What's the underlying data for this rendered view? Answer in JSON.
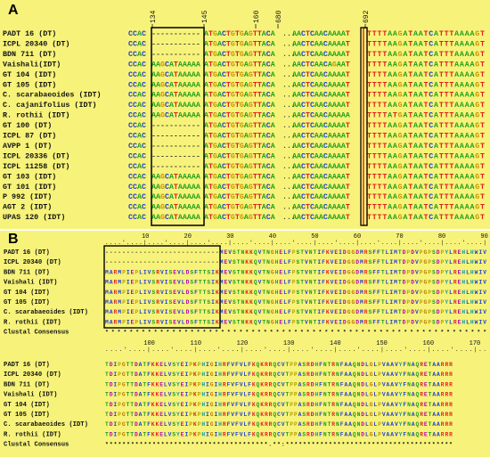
{
  "panel_a": {
    "label": "A",
    "positions": [
      "134",
      "145",
      "160",
      "680",
      "692"
    ],
    "names": [
      "PADT 16 (DT)",
      "ICPL 20340 (DT)",
      "BDN 711 (DT)",
      "Vaishali(IDT)",
      "GT 104 (IDT)",
      "GT 105 (IDT)",
      "C. scarabaeoides (IDT)",
      "C. cajanifolius (IDT)",
      "R. rothii (IDT)",
      "GT 100 (DT)",
      "ICPL 87 (DT)",
      "AVPP 1 (DT)",
      "ICPL 20336 (DT)",
      "ICPL 11258 (DT)",
      "GT 103 (IDT)",
      "GT 101 (IDT)",
      "P 992 (IDT)",
      "AGT 2 (IDT)",
      "UPAS 120 (IDT)"
    ],
    "rows": [
      [
        "CCAC",
        "-----------",
        "ATGACTGTGAGTTACA",
        "...",
        "AACTCAACAAAAT",
        "TTTTAAGATAATCATTTAAAAGT"
      ],
      [
        "CCAC",
        "-----------",
        "ATGACTGTGAGTTACA",
        "...",
        "AACTCAACAAAAT",
        "TTTTAAGATAATCATTTAAAAGT"
      ],
      [
        "CCAC",
        "-----------",
        "ATGACTGTGAGTTACA",
        "...",
        "AACTCAACAAAAT",
        "TTTTAAGATAATCATTTAAAAGT"
      ],
      [
        "CCAC",
        "AAGCATAAAAA",
        "ATGACTGTGAGTTACA",
        "...",
        "AACTCAACAGAAT",
        "TTTTAAGATAATCATTTAAAAGT"
      ],
      [
        "CCAC",
        "AAGCATAAAAA",
        "ATGACTGTGAGTTACA",
        "...",
        "AACTCAACAAAAT",
        "TTTTAAGATAATCATTTAAAAGT"
      ],
      [
        "CCAC",
        "AAGCATAAAAA",
        "ATGACTGTGAGTTACA",
        "...",
        "AACTCAACAAAAT",
        "TTTTAAGATAATCATTTAAAAGT"
      ],
      [
        "CCAC",
        "AAGCATAAAAA",
        "ATGACTGTGAGTTACA",
        "...",
        "AACTCAACAAAAT",
        "TTTTAAGATAATCATTTAAAAGT"
      ],
      [
        "CCAC",
        "AAGCATAAAAA",
        "ATGACTGTGAGTTACA",
        "...",
        "AACTCAACAAAAT",
        "TTTTAAGATAATCATTTAAAAGT"
      ],
      [
        "CCAC",
        "AAGCATAAAAA",
        "ATGACTGTGAGTTACA",
        "...",
        "AACTCAACAAAAA",
        "TTTTATGATAATCATTTAAAAGT"
      ],
      [
        "CCAC",
        "-----------",
        "ATGACTGTGAGTTACA",
        "...",
        "AACTCAACAAAAT",
        "TTTTAAGATAATCATTTAAAAGT"
      ],
      [
        "CCAC",
        "-----------",
        "ATGACTGTGAGTTACA",
        "...",
        "AACTCAACAAAAT",
        "TTTTAAGATAATCATTTAAAAGT"
      ],
      [
        "CCAC",
        "-----------",
        "ATGACTGTGAGTTACA",
        "...",
        "AACTCAACAAAAT",
        "TTTTAAGATAATCATTTAAAAGT"
      ],
      [
        "CCAC",
        "-----------",
        "ATGACTGTGAGTTACA",
        "...",
        "AACTCAACAAAAT",
        "TTTTAAGATAATCATTTAAAAGT"
      ],
      [
        "CCAC",
        "-----------",
        "ATGACTGTGAGTTACA",
        "...",
        "AACTCAACAAAAT",
        "TTTTAAGATAATCATTTAAAAGT"
      ],
      [
        "CCAC",
        "AAGCATAAAAA",
        "ATGACTGTGAGTTACA",
        "...",
        "AACTCAACAAAAT",
        "TTTTAAGATAATCATTTAAAAGT"
      ],
      [
        "CCAC",
        "AAGCATAAAAA",
        "ATGACTGTGAGTTACA",
        "...",
        "AACTCAACAAAAT",
        "TTTTAAGATAATCATTTAAAAGT"
      ],
      [
        "CCAC",
        "AAGCATAAAAA",
        "ATGACTGTGAGTTACA",
        "...",
        "AACTCAACAAAAT",
        "TTTTAAGATAATCATTTAAAAGT"
      ],
      [
        "CCAC",
        "AAGCATAAAAA",
        "ATGACTGTGAGTTACA",
        "...",
        "AACTCAACAAAAT",
        "TTTTAAGATAATCATTTAAAAGT"
      ],
      [
        "CCAC",
        "AAGCATAAAAA",
        "ATGACTGTGAGTTACA",
        "...",
        "AACTCAACAAAAT",
        "TTTTAAGATAATCATTTAAAAGT"
      ]
    ]
  },
  "panel_b": {
    "label": "B",
    "ruler1": [
      "10",
      "20",
      "30",
      "40",
      "50",
      "60",
      "70",
      "80",
      "90"
    ],
    "ruler2": [
      "100",
      "110",
      "120",
      "130",
      "140",
      "150",
      "160",
      "170"
    ],
    "names": [
      "PADT 16 (DT)",
      "ICPL 20340 (DT)",
      "BDN 711 (DT)",
      "Vaishali (IDT)",
      "GT 104 (IDT)",
      "GT 105 (IDT)",
      "C. scarabaeoides (IDT)",
      "R. rothii (IDT)"
    ],
    "consensus_label": "Clustal Consensus",
    "block1_gap": "--------------------------------",
    "block1_insert": "MARMPIEPLIVSRVISEVLDSFTTSIK",
    "block1_tail": "MEVSTNKKQVTNGHELFPSTVNTIFKVEIDGGDMRSFFTLIMTDPDVPGPSDPYLREHLHWIV",
    "block1_consensus": "                                   ***************************************************************",
    "block2": [
      "TDIPGTTDATFKKELVSYEIPKPHIGIHRFVFVLFKQKRRQCVTPPASRDHFNTRNFAAQNDLGLPVAAVYFNAQRETAARRR",
      "TDIPGTTDATFKKELVSYEIPKPHIGIHRFVFVLFKQKRRQCVTPPASRDHFNTRNFAAQNDLGLPVAAVYFNAQRETAARRR",
      "TDIPGTTDATFKKELVSYEIPKPHIGIHRFVFVLFKQKRRQCVTPPASRDHFNTRNFAAQNDLGLPVAAVYFNAQRETAARRR",
      "TDIPGTTDATFKKELVSYEIPKPHIGIHRFVFVLFKQKRRQCVTPPASRDHFNTRNFAAQNDLGLPVAAVYFNAQRETAARRR",
      "TDIPGTTDATFKKELVSYEIPKPHIGIHRFVFVLFKQKRRQCVTPPASRDHFNTRNFAAQNDLGLPVAAVYFNAQRETAARRR",
      "TDIPGTTDATFKKELVSYEIPKPHIGIHRFVFVLFKQKRRQCVTPPASRDHFNTRNFAAQNDLGLPVAAVYFNAQRETAARRR",
      "TDIPGTTDATFKKELVSYEIPKPHIGIHRFVFVLFKQKRRQCVTPPASRDHFNTRNFAAQNDLGLPVAAVYFNAQRETAARRR",
      "TDIPGTTDATFKKELVSYEIPKPHIGIHRFVFVLFKQKRRQCVTPPASRDHFNTRNFAAQNDLGLPVAAVYFNAQRETAARRR"
    ],
    "block2_consensus": "**************************************.**:***************************************"
  },
  "colors": {
    "background": "#f7f37a",
    "A": "#1a9e1a",
    "C": "#1f3fd0",
    "G": "#c89400",
    "T": "#e01e1e",
    "highlight_box": "#000000",
    "mutation_box": "#d40000"
  }
}
